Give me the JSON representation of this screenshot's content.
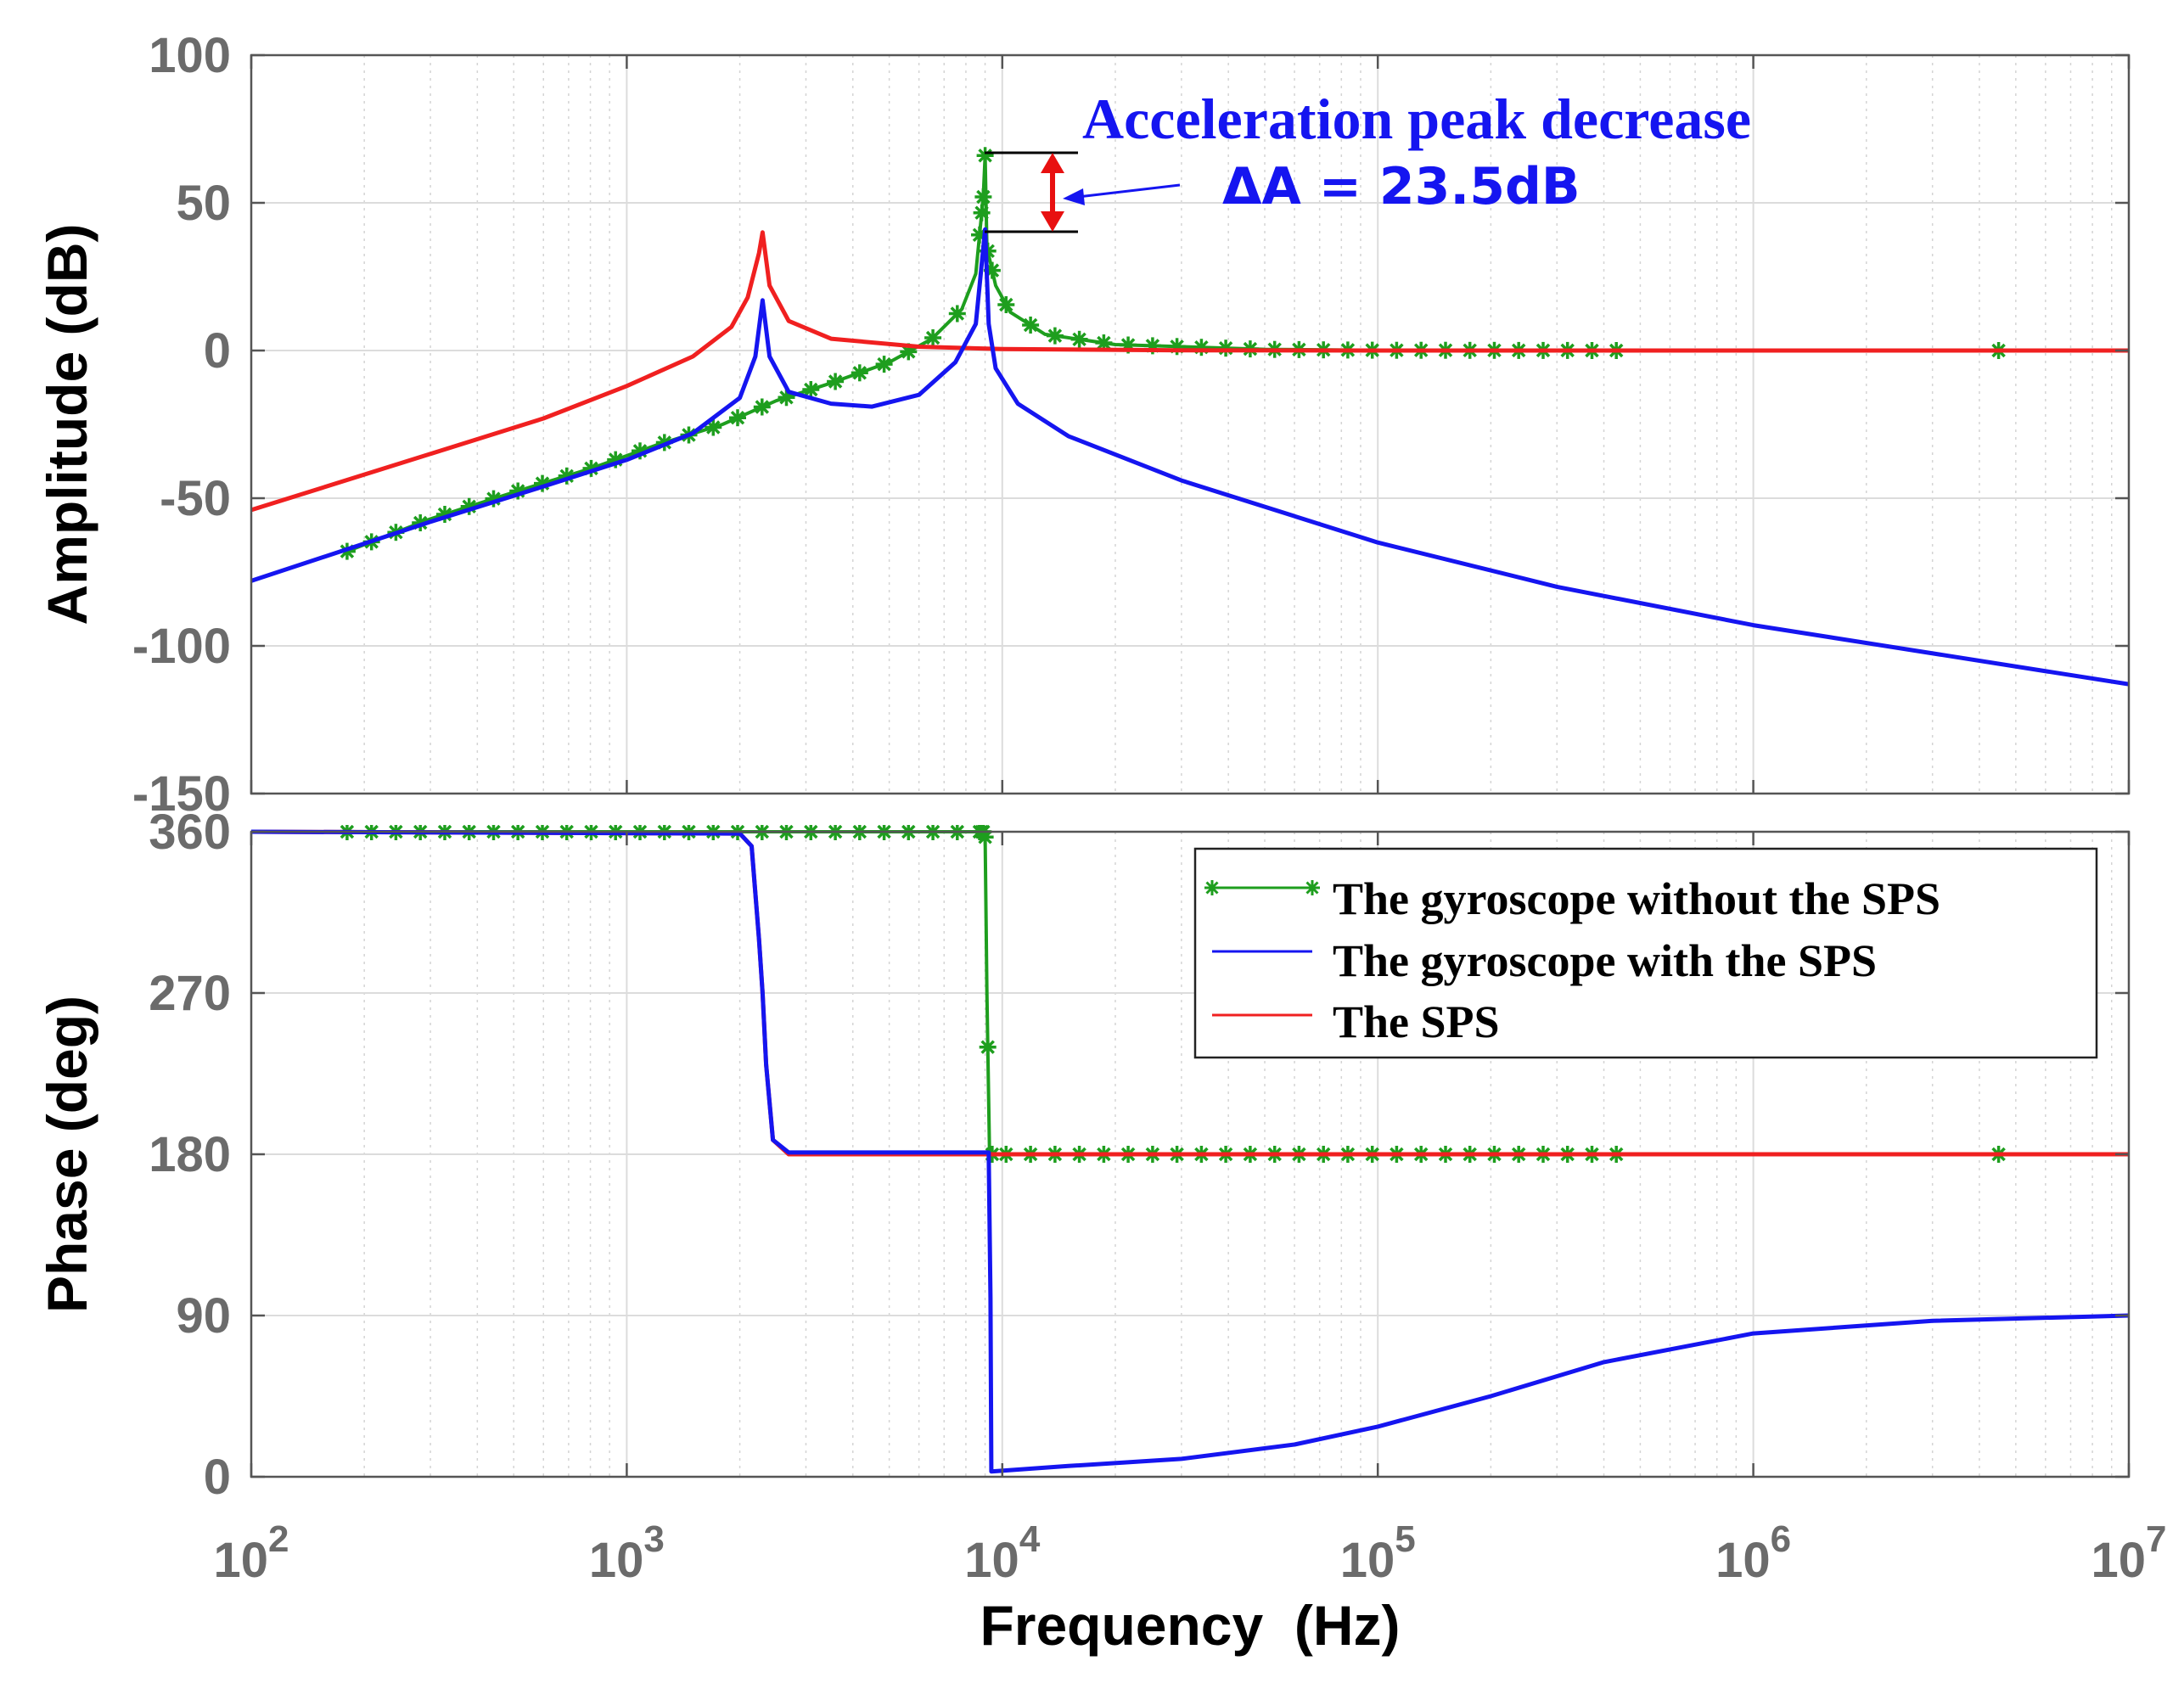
{
  "chart_data": [
    {
      "type": "line",
      "panel": "amplitude",
      "xlabel": "",
      "ylabel": "Amplitude (dB)",
      "xscale": "log",
      "xlim": [
        100,
        10000000
      ],
      "ylim": [
        -150,
        100
      ],
      "yticks": [
        "100",
        "50",
        "0",
        "-50",
        "-100",
        "-150"
      ],
      "grid": true,
      "series": [
        {
          "name": "The gyroscope without the SPS",
          "color": "#1e9e1e",
          "marker": "star",
          "x": [
            180,
            300,
            500,
            800,
            1200,
            1800,
            2500,
            3500,
            5000,
            6500,
            7800,
            8500,
            8900,
            9000,
            9100,
            9600,
            10500,
            13000,
            20000,
            50000,
            100000,
            450000,
            4500000
          ],
          "y": [
            -68,
            -57,
            -48,
            -40,
            -32,
            -25,
            -17,
            -11,
            -4,
            4,
            14,
            26,
            52,
            66,
            35,
            22,
            13,
            5.5,
            2,
            0.4,
            0.1,
            0,
            0
          ]
        },
        {
          "name": "The gyroscope with the SPS",
          "color": "#1515f0",
          "marker": "none",
          "x": [
            100,
            300,
            600,
            1000,
            1500,
            2000,
            2200,
            2300,
            2400,
            2700,
            3500,
            4500,
            6000,
            7500,
            8500,
            9000,
            9200,
            9600,
            11000,
            15000,
            30000,
            100000,
            300000,
            1000000,
            10000000
          ],
          "y": [
            -78,
            -58,
            -46,
            -37,
            -28,
            -16,
            -2,
            17,
            -2,
            -14,
            -18,
            -19,
            -15,
            -4,
            9,
            41,
            9,
            -6,
            -18,
            -29,
            -44,
            -65,
            -80,
            -93,
            -113
          ]
        },
        {
          "name": "The SPS",
          "color": "#f02020",
          "marker": "none",
          "x": [
            100,
            300,
            600,
            1000,
            1500,
            1900,
            2100,
            2250,
            2300,
            2400,
            2700,
            3500,
            6000,
            10000,
            30000,
            100000,
            10000000
          ],
          "y": [
            -54,
            -35,
            -23,
            -12,
            -2,
            8,
            18,
            33,
            40,
            22,
            10,
            4,
            1.3,
            0.5,
            0.1,
            0,
            0
          ]
        }
      ],
      "annotations": [
        {
          "text": "Acceleration peak decrease",
          "color": "#1515f0"
        },
        {
          "text": "ΔA = 23.5dB",
          "color": "#1515f0"
        }
      ]
    },
    {
      "type": "line",
      "panel": "phase",
      "xlabel": "Frequency  (Hz)",
      "ylabel": "Phase (deg)",
      "xscale": "log",
      "xlim": [
        100,
        10000000
      ],
      "ylim": [
        0,
        360
      ],
      "yticks": [
        "360",
        "270",
        "180",
        "90",
        "0"
      ],
      "xticks": [
        {
          "base": "10",
          "exp": "2"
        },
        {
          "base": "10",
          "exp": "3"
        },
        {
          "base": "10",
          "exp": "4"
        },
        {
          "base": "10",
          "exp": "5"
        },
        {
          "base": "10",
          "exp": "6"
        },
        {
          "base": "10",
          "exp": "7"
        }
      ],
      "grid": true,
      "legend": "top-right",
      "series": [
        {
          "name": "The gyroscope without the SPS",
          "color": "#1e9e1e",
          "marker": "star",
          "x": [
            180,
            8900,
            9000,
            9100,
            9250,
            9500,
            450000,
            4500000
          ],
          "y": [
            360,
            360,
            357,
            270,
            180,
            180,
            180,
            180
          ]
        },
        {
          "name": "The gyroscope with the SPS",
          "color": "#1515f0",
          "marker": "none",
          "x": [
            100,
            2000,
            2150,
            2250,
            2300,
            2350,
            2450,
            2700,
            5000,
            9200,
            9300,
            9350,
            15000,
            30000,
            60000,
            100000,
            200000,
            400000,
            1000000,
            3000000,
            10000000
          ],
          "y": [
            360,
            359,
            352,
            300,
            270,
            230,
            188,
            181,
            181,
            181,
            100,
            3,
            6,
            10,
            18,
            28,
            45,
            64,
            80,
            87,
            90
          ]
        },
        {
          "name": "The SPS",
          "color": "#f02020",
          "marker": "none",
          "x": [
            100,
            2000,
            2150,
            2250,
            2300,
            2350,
            2450,
            2700,
            5000,
            10000000
          ],
          "y": [
            360,
            359,
            352,
            300,
            270,
            230,
            188,
            180,
            180,
            180
          ]
        }
      ]
    }
  ]
}
